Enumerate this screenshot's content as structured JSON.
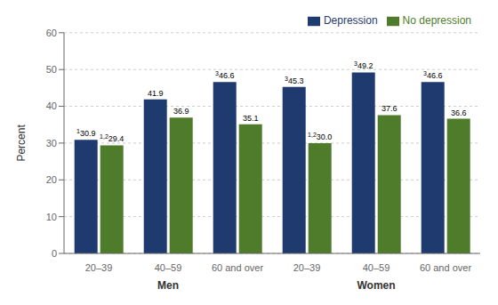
{
  "chart_data": {
    "type": "bar",
    "categories": [
      "20–39",
      "40–59",
      "60 and over",
      "20–39",
      "40–59",
      "60 and over"
    ],
    "category_groups": [
      {
        "name": "Men",
        "size": 3
      },
      {
        "name": "Women",
        "size": 3
      }
    ],
    "series": [
      {
        "name": "Depression",
        "color": "#1f3a6e",
        "values": [
          30.9,
          41.9,
          46.6,
          45.3,
          49.2,
          46.6
        ],
        "value_labels": [
          "30.9",
          "41.9",
          "46.6",
          "45.3",
          "49.2",
          "46.6"
        ],
        "superscripts": [
          "1",
          null,
          "3",
          "3",
          "3",
          "3"
        ]
      },
      {
        "name": "No depression",
        "color": "#4e7c2a",
        "values": [
          29.4,
          36.9,
          35.1,
          30.0,
          37.6,
          36.6
        ],
        "value_labels": [
          "29.4",
          "36.9",
          "35.1",
          "30.0",
          "37.6",
          "36.6"
        ],
        "superscripts": [
          "1,2",
          null,
          null,
          "1,2",
          null,
          null
        ]
      }
    ],
    "ylabel": "Percent",
    "ylim": [
      0,
      60
    ],
    "yticks": [
      0,
      10,
      20,
      30,
      40,
      50,
      60
    ],
    "grid": true,
    "legend": "upper right",
    "data_labels": true
  }
}
